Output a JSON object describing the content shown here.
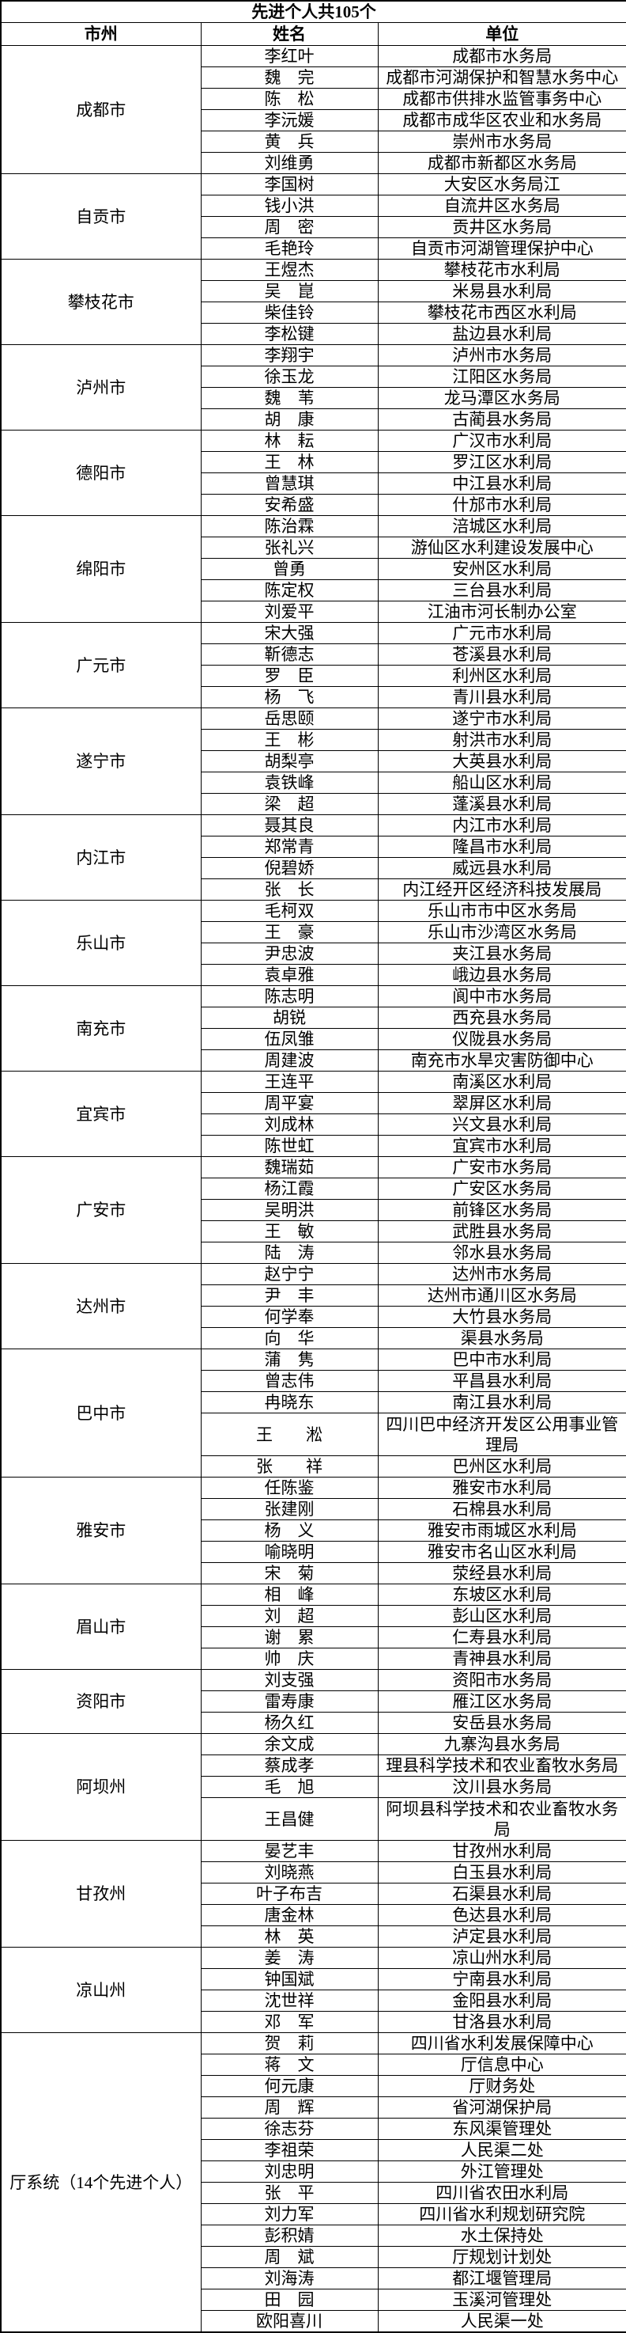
{
  "title": "先进个人共105个",
  "columns": [
    "市州",
    "姓名",
    "单位"
  ],
  "groups": [
    {
      "region": "成都市",
      "people": [
        {
          "name": "李红叶",
          "unit": "成都市水务局"
        },
        {
          "name": "魏　完",
          "unit": "成都市河湖保护和智慧水务中心"
        },
        {
          "name": "陈　松",
          "unit": "成都市供排水监管事务中心"
        },
        {
          "name": "李沅媛",
          "unit": "成都市成华区农业和水务局"
        },
        {
          "name": "黄　兵",
          "unit": "崇州市水务局"
        },
        {
          "name": "刘维勇",
          "unit": "成都市新都区水务局"
        }
      ]
    },
    {
      "region": "自贡市",
      "people": [
        {
          "name": "李国树",
          "unit": "大安区水务局江"
        },
        {
          "name": "钱小洪",
          "unit": "自流井区水务局"
        },
        {
          "name": "周　密",
          "unit": "贡井区水务局"
        },
        {
          "name": "毛艳玲",
          "unit": "自贡市河湖管理保护中心"
        }
      ]
    },
    {
      "region": "攀枝花市",
      "people": [
        {
          "name": "王煜杰",
          "unit": "攀枝花市水利局"
        },
        {
          "name": "吴　崑",
          "unit": "米易县水利局"
        },
        {
          "name": "柴佳铃",
          "unit": "攀枝花市西区水利局"
        },
        {
          "name": "李松键",
          "unit": "盐边县水利局"
        }
      ]
    },
    {
      "region": "泸州市",
      "people": [
        {
          "name": "李翔宇",
          "unit": "泸州市水务局"
        },
        {
          "name": "徐玉龙",
          "unit": "江阳区水务局"
        },
        {
          "name": "魏　苇",
          "unit": "龙马潭区水务局"
        },
        {
          "name": "胡　康",
          "unit": "古蔺县水务局"
        }
      ]
    },
    {
      "region": "德阳市",
      "people": [
        {
          "name": "林　耘",
          "unit": "广汉市水利局"
        },
        {
          "name": "王　林",
          "unit": "罗江区水利局"
        },
        {
          "name": "曾慧琪",
          "unit": "中江县水利局"
        },
        {
          "name": "安希盛",
          "unit": "什邡市水利局"
        }
      ]
    },
    {
      "region": "绵阳市",
      "people": [
        {
          "name": "陈治霖",
          "unit": "涪城区水利局"
        },
        {
          "name": "张礼兴",
          "unit": "游仙区水利建设发展中心"
        },
        {
          "name": "曾勇",
          "unit": "安州区水利局"
        },
        {
          "name": "陈定权",
          "unit": "三台县水利局"
        },
        {
          "name": "刘爱平",
          "unit": "江油市河长制办公室"
        }
      ]
    },
    {
      "region": "广元市",
      "people": [
        {
          "name": "宋大强",
          "unit": "广元市水利局"
        },
        {
          "name": "靳德志",
          "unit": "苍溪县水利局"
        },
        {
          "name": "罗　臣",
          "unit": "利州区水利局"
        },
        {
          "name": "杨　飞",
          "unit": "青川县水利局"
        }
      ]
    },
    {
      "region": "遂宁市",
      "people": [
        {
          "name": "岳思颐",
          "unit": "遂宁市水利局"
        },
        {
          "name": "王　彬",
          "unit": "射洪市水利局"
        },
        {
          "name": "胡梨亭",
          "unit": "大英县水利局"
        },
        {
          "name": "袁铁峰",
          "unit": "船山区水利局"
        },
        {
          "name": "梁　超",
          "unit": "蓬溪县水利局"
        }
      ]
    },
    {
      "region": "内江市",
      "people": [
        {
          "name": "聂其良",
          "unit": "内江市水利局"
        },
        {
          "name": "郑常青",
          "unit": "隆昌市水利局"
        },
        {
          "name": "倪碧娇",
          "unit": "威远县水利局"
        },
        {
          "name": "张　长",
          "unit": "内江经开区经济科技发展局"
        }
      ]
    },
    {
      "region": "乐山市",
      "people": [
        {
          "name": "毛柯双",
          "unit": "乐山市市中区水务局"
        },
        {
          "name": "王　豪",
          "unit": "乐山市沙湾区水务局"
        },
        {
          "name": "尹忠波",
          "unit": "夹江县水务局"
        },
        {
          "name": "袁卓雅",
          "unit": "峨边县水务局"
        }
      ]
    },
    {
      "region": "南充市",
      "people": [
        {
          "name": "陈志明",
          "unit": "阆中市水务局"
        },
        {
          "name": "胡锐",
          "unit": "西充县水务局"
        },
        {
          "name": "伍凤雏",
          "unit": "仪陇县水务局"
        },
        {
          "name": "周建波",
          "unit": "南充市水旱灾害防御中心"
        }
      ]
    },
    {
      "region": "宜宾市",
      "people": [
        {
          "name": "王连平",
          "unit": "南溪区水利局"
        },
        {
          "name": "周平宴",
          "unit": "翠屏区水利局"
        },
        {
          "name": "刘成林",
          "unit": "兴文县水利局"
        },
        {
          "name": "陈世虹",
          "unit": "宜宾市水利局"
        }
      ]
    },
    {
      "region": "广安市",
      "people": [
        {
          "name": "魏瑞茹",
          "unit": "广安市水务局"
        },
        {
          "name": "杨江霞",
          "unit": "广安区水务局"
        },
        {
          "name": "吴明洪",
          "unit": "前锋区水务局"
        },
        {
          "name": "王　敏",
          "unit": "武胜县水务局"
        },
        {
          "name": "陆　涛",
          "unit": "邻水县水务局"
        }
      ]
    },
    {
      "region": "达州市",
      "people": [
        {
          "name": "赵宁宁",
          "unit": "达州市水务局"
        },
        {
          "name": "尹　丰",
          "unit": "达州市通川区水务局"
        },
        {
          "name": "何学奉",
          "unit": "大竹县水务局"
        },
        {
          "name": "向　华",
          "unit": "渠县水务局"
        }
      ]
    },
    {
      "region": "巴中市",
      "people": [
        {
          "name": "蒲　隽",
          "unit": "巴中市水利局"
        },
        {
          "name": "曾志伟",
          "unit": "平昌县水利局"
        },
        {
          "name": "冉晓东",
          "unit": "南江县水利局"
        },
        {
          "name": "王　　淞",
          "unit": "四川巴中经济开发区公用事业管理局"
        },
        {
          "name": "张　　祥",
          "unit": "巴州区水利局"
        }
      ]
    },
    {
      "region": "雅安市",
      "people": [
        {
          "name": "任陈鉴",
          "unit": "雅安市水利局"
        },
        {
          "name": "张建刚",
          "unit": "石棉县水利局"
        },
        {
          "name": "杨　义",
          "unit": "雅安市雨城区水利局"
        },
        {
          "name": "喻晓明",
          "unit": "雅安市名山区水利局"
        },
        {
          "name": "宋　菊",
          "unit": "荥经县水利局"
        }
      ]
    },
    {
      "region": "眉山市",
      "people": [
        {
          "name": "相　峰",
          "unit": "东坡区水利局"
        },
        {
          "name": "刘　超",
          "unit": "彭山区水利局"
        },
        {
          "name": "谢　累",
          "unit": "仁寿县水利局"
        },
        {
          "name": "帅　庆",
          "unit": "青神县水利局"
        }
      ]
    },
    {
      "region": "资阳市",
      "people": [
        {
          "name": "刘支强",
          "unit": "资阳市水务局"
        },
        {
          "name": "雷寿康",
          "unit": "雁江区水务局"
        },
        {
          "name": "杨久红",
          "unit": "安岳县水务局"
        }
      ]
    },
    {
      "region": "阿坝州",
      "people": [
        {
          "name": "余文成",
          "unit": "九寨沟县水务局"
        },
        {
          "name": "蔡成孝",
          "unit": "理县科学技术和农业畜牧水务局"
        },
        {
          "name": "毛　旭",
          "unit": "汶川县水务局"
        },
        {
          "name": "王昌健",
          "unit": "阿坝县科学技术和农业畜牧水务局"
        }
      ]
    },
    {
      "region": "甘孜州",
      "people": [
        {
          "name": "晏艺丰",
          "unit": "甘孜州水利局"
        },
        {
          "name": "刘晓燕",
          "unit": "白玉县水利局"
        },
        {
          "name": "叶子布吉",
          "unit": "石渠县水利局"
        },
        {
          "name": "唐金林",
          "unit": "色达县水利局"
        },
        {
          "name": "林　英",
          "unit": "泸定县水利局"
        }
      ]
    },
    {
      "region": "凉山州",
      "people": [
        {
          "name": "姜　涛",
          "unit": "凉山州水利局"
        },
        {
          "name": "钟国斌",
          "unit": "宁南县水利局"
        },
        {
          "name": "沈世祥",
          "unit": "金阳县水利局"
        },
        {
          "name": "邓　军",
          "unit": "甘洛县水利局"
        }
      ]
    },
    {
      "region": "厅系统（14个先进个人）",
      "people": [
        {
          "name": "贺　莉",
          "unit": "四川省水利发展保障中心"
        },
        {
          "name": "蒋　文",
          "unit": "厅信息中心"
        },
        {
          "name": "何元康",
          "unit": "厅财务处"
        },
        {
          "name": "周　辉",
          "unit": "省河湖保护局"
        },
        {
          "name": "徐志芬",
          "unit": "东风渠管理处"
        },
        {
          "name": "李祖荣",
          "unit": "人民渠二处"
        },
        {
          "name": "刘忠明",
          "unit": "外江管理处"
        },
        {
          "name": "张　平",
          "unit": "四川省农田水利局"
        },
        {
          "name": "刘力军",
          "unit": "四川省水利规划研究院"
        },
        {
          "name": "彭积婧",
          "unit": "水土保持处"
        },
        {
          "name": "周　斌",
          "unit": "厅规划计划处"
        },
        {
          "name": "刘海涛",
          "unit": "都江堰管理局"
        },
        {
          "name": "田　园",
          "unit": "玉溪河管理处"
        },
        {
          "name": "欧阳喜川",
          "unit": "人民渠一处"
        }
      ]
    }
  ]
}
